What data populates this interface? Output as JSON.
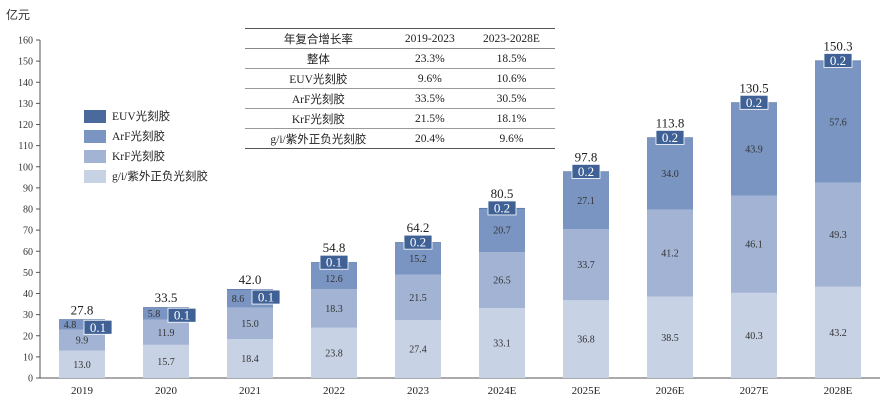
{
  "chart_data": {
    "type": "bar",
    "stacked": true,
    "unit_label": "亿元",
    "categories": [
      "2019",
      "2020",
      "2021",
      "2022",
      "2023",
      "2024E",
      "2025E",
      "2026E",
      "2027E",
      "2028E"
    ],
    "series": [
      {
        "name": "g/i/紫外正负光刻胶",
        "color": "#c8d2e5",
        "values": [
          13.0,
          15.7,
          18.4,
          23.8,
          27.4,
          33.1,
          36.8,
          38.5,
          40.3,
          43.2
        ]
      },
      {
        "name": "KrF光刻胶",
        "color": "#a2b3d3",
        "values": [
          9.9,
          11.9,
          15.0,
          18.3,
          21.5,
          26.5,
          33.7,
          41.2,
          46.1,
          49.3
        ]
      },
      {
        "name": "ArF光刻胶",
        "color": "#7a95c2",
        "values": [
          4.8,
          5.8,
          8.6,
          12.6,
          15.2,
          20.7,
          27.1,
          34.0,
          43.9,
          57.6
        ]
      },
      {
        "name": "EUV光刻胶",
        "color": "#4a6a9e",
        "values": [
          0.1,
          0.1,
          0.1,
          0.1,
          0.2,
          0.2,
          0.2,
          0.2,
          0.2,
          0.2
        ]
      }
    ],
    "totals": [
      27.8,
      33.5,
      42.0,
      54.8,
      64.2,
      80.5,
      97.8,
      113.8,
      130.5,
      150.3
    ],
    "ylim": [
      0,
      160
    ],
    "yticks": [
      0,
      10,
      20,
      30,
      40,
      50,
      60,
      70,
      80,
      90,
      100,
      110,
      120,
      130,
      140,
      150,
      160
    ],
    "legend_position": "left",
    "grid": false
  },
  "legend_order": [
    "EUV光刻胶",
    "ArF光刻胶",
    "KrF光刻胶",
    "g/i/紫外正负光刻胶"
  ],
  "cagr_table": {
    "headers": [
      "年复合增长率",
      "2019-2023",
      "2023-2028E"
    ],
    "rows": [
      [
        "整体",
        "23.3%",
        "18.5%"
      ],
      [
        "EUV光刻胶",
        "9.6%",
        "10.6%"
      ],
      [
        "ArF光刻胶",
        "33.5%",
        "30.5%"
      ],
      [
        "KrF光刻胶",
        "21.5%",
        "18.1%"
      ],
      [
        "g/i/紫外正负光刻胶",
        "20.4%",
        "9.6%"
      ]
    ]
  }
}
